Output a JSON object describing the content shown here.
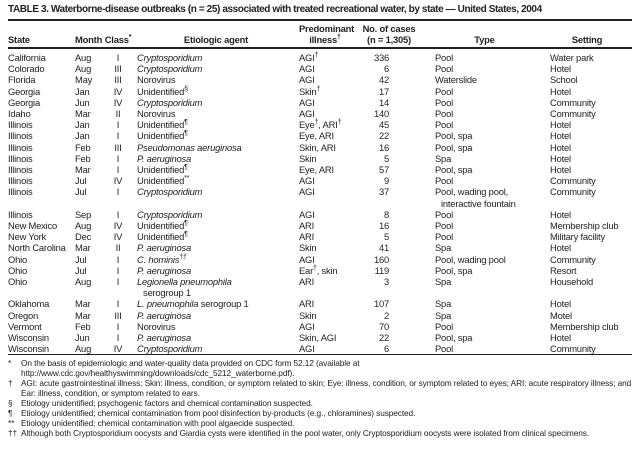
{
  "colors": {
    "background": "#ffffff",
    "text": "#222222",
    "rule": "#222222"
  },
  "table": {
    "title": "TABLE 3. Waterborne-disease outbreaks (n = 25) associated with treated recreational water, by state — United States, 2004",
    "columns": {
      "state": "State",
      "month": "Month",
      "class": "Class*",
      "agent": "Etiologic agent",
      "illness_line1": "Predominant",
      "illness_line2": "illness†",
      "cases_line1": "No. of cases",
      "cases_line2": "(n = 1,305)",
      "type": "Type",
      "setting": "Setting"
    },
    "rows": [
      {
        "state": "California",
        "month": "Aug",
        "class": "I",
        "agent_italic": "Cryptosporidium",
        "agent_roman": "",
        "agent_sup": "",
        "agent_line2": "",
        "illness": "AGI†",
        "cases": "336",
        "type": "Pool",
        "type_line2": "",
        "setting": "Water park"
      },
      {
        "state": "Colorado",
        "month": "Aug",
        "class": "III",
        "agent_italic": "Cryptosporidium",
        "agent_roman": "",
        "agent_sup": "",
        "agent_line2": "",
        "illness": "AGI",
        "cases": "6",
        "type": "Pool",
        "type_line2": "",
        "setting": "Hotel"
      },
      {
        "state": "Florida",
        "month": "May",
        "class": "III",
        "agent_italic": "",
        "agent_roman": "Norovirus",
        "agent_sup": "",
        "agent_line2": "",
        "illness": "AGI",
        "cases": "42",
        "type": "Waterslide",
        "type_line2": "",
        "setting": "School"
      },
      {
        "state": "Georgia",
        "month": "Jan",
        "class": "IV",
        "agent_italic": "",
        "agent_roman": "Unidentified",
        "agent_sup": "§",
        "agent_line2": "",
        "illness": "Skin†",
        "cases": "17",
        "type": "Pool",
        "type_line2": "",
        "setting": "Hotel"
      },
      {
        "state": "Georgia",
        "month": "Jun",
        "class": "IV",
        "agent_italic": "Cryptosporidium",
        "agent_roman": "",
        "agent_sup": "",
        "agent_line2": "",
        "illness": "AGI",
        "cases": "14",
        "type": "Pool",
        "type_line2": "",
        "setting": "Community"
      },
      {
        "state": "Idaho",
        "month": "Mar",
        "class": "II",
        "agent_italic": "",
        "agent_roman": "Norovirus",
        "agent_sup": "",
        "agent_line2": "",
        "illness": "AGI",
        "cases": "140",
        "type": "Pool",
        "type_line2": "",
        "setting": "Community"
      },
      {
        "state": "Illinois",
        "month": "Jan",
        "class": "I",
        "agent_italic": "",
        "agent_roman": "Unidentified",
        "agent_sup": "¶",
        "agent_line2": "",
        "illness": "Eye†, ARI†",
        "cases": "45",
        "type": "Pool",
        "type_line2": "",
        "setting": "Hotel"
      },
      {
        "state": "Illinois",
        "month": "Jan",
        "class": "I",
        "agent_italic": "",
        "agent_roman": "Unidentified",
        "agent_sup": "¶",
        "agent_line2": "",
        "illness": "Eye, ARI",
        "cases": "22",
        "type": "Pool, spa",
        "type_line2": "",
        "setting": "Hotel"
      },
      {
        "state": "Illinois",
        "month": "Feb",
        "class": "III",
        "agent_italic": "Pseudomonas aeruginosa",
        "agent_roman": "",
        "agent_sup": "",
        "agent_line2": "",
        "illness": "Skin, ARI",
        "cases": "16",
        "type": "Pool, spa",
        "type_line2": "",
        "setting": "Hotel"
      },
      {
        "state": "Illinois",
        "month": "Feb",
        "class": "I",
        "agent_italic": "P. aeruginosa",
        "agent_roman": "",
        "agent_sup": "",
        "agent_line2": "",
        "illness": "Skin",
        "cases": "5",
        "type": "Spa",
        "type_line2": "",
        "setting": "Hotel"
      },
      {
        "state": "Illinois",
        "month": "Mar",
        "class": "I",
        "agent_italic": "",
        "agent_roman": "Unidentified",
        "agent_sup": "¶",
        "agent_line2": "",
        "illness": "Eye, ARI",
        "cases": "57",
        "type": "Pool, spa",
        "type_line2": "",
        "setting": "Hotel"
      },
      {
        "state": "Illinois",
        "month": "Jul",
        "class": "IV",
        "agent_italic": "",
        "agent_roman": "Unidentified",
        "agent_sup": "**",
        "agent_line2": "",
        "illness": "AGI",
        "cases": "9",
        "type": "Pool",
        "type_line2": "",
        "setting": "Community"
      },
      {
        "state": "Illinois",
        "month": "Jul",
        "class": "I",
        "agent_italic": "Cryptosporidium",
        "agent_roman": "",
        "agent_sup": "",
        "agent_line2": "",
        "illness": "AGI",
        "cases": "37",
        "type": "Pool, wading pool,",
        "type_line2": "interactive fountain",
        "setting": "Community"
      },
      {
        "state": "Illinois",
        "month": "Sep",
        "class": "I",
        "agent_italic": "Cryptosporidium",
        "agent_roman": "",
        "agent_sup": "",
        "agent_line2": "",
        "illness": "AGI",
        "cases": "8",
        "type": "Pool",
        "type_line2": "",
        "setting": "Hotel"
      },
      {
        "state": "New Mexico",
        "month": "Aug",
        "class": "IV",
        "agent_italic": "",
        "agent_roman": "Unidentified",
        "agent_sup": "¶",
        "agent_line2": "",
        "illness": "ARI",
        "cases": "16",
        "type": "Pool",
        "type_line2": "",
        "setting": "Membership club"
      },
      {
        "state": "New York",
        "month": "Dec",
        "class": "IV",
        "agent_italic": "",
        "agent_roman": "Unidentified",
        "agent_sup": "¶",
        "agent_line2": "",
        "illness": "ARI",
        "cases": "5",
        "type": "Pool",
        "type_line2": "",
        "setting": "Military facility"
      },
      {
        "state": "North Carolina",
        "month": "Mar",
        "class": "II",
        "agent_italic": "P. aeruginosa",
        "agent_roman": "",
        "agent_sup": "",
        "agent_line2": "",
        "illness": "Skin",
        "cases": "41",
        "type": "Spa",
        "type_line2": "",
        "setting": "Hotel"
      },
      {
        "state": "Ohio",
        "month": "Jul",
        "class": "I",
        "agent_italic": "C. hominis",
        "agent_roman": "",
        "agent_sup": "††",
        "agent_line2": "",
        "illness": "AGI",
        "cases": "160",
        "type": "Pool, wading pool",
        "type_line2": "",
        "setting": "Community"
      },
      {
        "state": "Ohio",
        "month": "Jul",
        "class": "I",
        "agent_italic": "P. aeruginosa",
        "agent_roman": "",
        "agent_sup": "",
        "agent_line2": "",
        "illness": "Ear†, skin",
        "cases": "119",
        "type": "Pool, spa",
        "type_line2": "",
        "setting": "Resort"
      },
      {
        "state": "Ohio",
        "month": "Aug",
        "class": "I",
        "agent_italic": "Legionella pneumophila",
        "agent_roman": "",
        "agent_sup": "",
        "agent_line2": "serogroup 1",
        "illness": "ARI",
        "cases": "3",
        "type": "Spa",
        "type_line2": "",
        "setting": "Household"
      },
      {
        "state": "Oklahoma",
        "month": "Mar",
        "class": "I",
        "agent_italic": "L. pneumophila",
        "agent_roman": " serogroup 1",
        "agent_sup": "",
        "agent_line2": "",
        "illness": "ARI",
        "cases": "107",
        "type": "Spa",
        "type_line2": "",
        "setting": "Hotel"
      },
      {
        "state": "Oregon",
        "month": "Mar",
        "class": "III",
        "agent_italic": "P. aeruginosa",
        "agent_roman": "",
        "agent_sup": "",
        "agent_line2": "",
        "illness": "Skin",
        "cases": "2",
        "type": "Spa",
        "type_line2": "",
        "setting": "Motel"
      },
      {
        "state": "Vermont",
        "month": "Feb",
        "class": "I",
        "agent_italic": "",
        "agent_roman": "Norovirus",
        "agent_sup": "",
        "agent_line2": "",
        "illness": "AGI",
        "cases": "70",
        "type": "Pool",
        "type_line2": "",
        "setting": "Membership club"
      },
      {
        "state": "Wisconsin",
        "month": "Jun",
        "class": "I",
        "agent_italic": "P. aeruginosa",
        "agent_roman": "",
        "agent_sup": "",
        "agent_line2": "",
        "illness": "Skin, AGI",
        "cases": "22",
        "type": "Pool, spa",
        "type_line2": "",
        "setting": "Hotel"
      },
      {
        "state": "Wisconsin",
        "month": "Aug",
        "class": "IV",
        "agent_italic": "Cryptosporidium",
        "agent_roman": "",
        "agent_sup": "",
        "agent_line2": "",
        "illness": "AGI",
        "cases": "6",
        "type": "Pool",
        "type_line2": "",
        "setting": "Community"
      }
    ],
    "footnotes": [
      {
        "symbol": "*",
        "text": "On the basis of epidemiologic and water-quality data provided on CDC form 52.12 (available at http://www.cdc.gov/healthyswimming/downloads/cdc_5212_waterborne.pdf)."
      },
      {
        "symbol": "†",
        "text": "AGI: acute gastrointestinal illness; Skin: illness, condition, or symptom related to skin; Eye: illness, condition, or symptom related to eyes; ARI: acute respiratory illness; and Ear: illness, condition, or symptom related to ears."
      },
      {
        "symbol": "§",
        "text": "Etiology unidentified; psychogenic factors and chemical contamination suspected."
      },
      {
        "symbol": "¶",
        "text": "Etiology unidentified; chemical contamination from pool disinfection by-products (e.g., chloramines) suspected."
      },
      {
        "symbol": "**",
        "text": "Etiology unidentified; chemical contamination with pool algaecide suspected."
      },
      {
        "symbol": "††",
        "text": "Although both Cryptosporidium oocysts and Giardia cysts were identified in the pool water, only Cryptosporidium oocysts were isolated from clinical specimens."
      }
    ]
  }
}
